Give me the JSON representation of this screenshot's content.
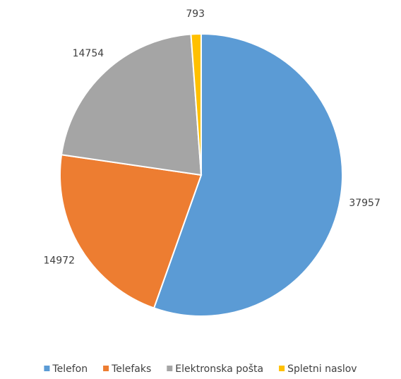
{
  "chart_data": {
    "type": "pie",
    "categories": [
      "Telefon",
      "Telefaks",
      "Elektronska pošta",
      "Spletni naslov"
    ],
    "values": [
      37957,
      14972,
      14754,
      793
    ],
    "colors": [
      "#5b9bd5",
      "#ed7d31",
      "#a5a5a5",
      "#ffc000"
    ],
    "legend": "bottom"
  }
}
